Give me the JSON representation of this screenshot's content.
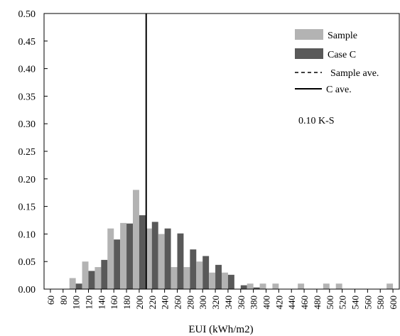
{
  "chart_data": {
    "type": "bar",
    "title": "",
    "xlabel": "EUI (kWh/m2)",
    "ylabel": "",
    "ylim": [
      0,
      0.5
    ],
    "yticks": [
      "0.00",
      "0.05",
      "0.10",
      "0.15",
      "0.20",
      "0.25",
      "0.30",
      "0.35",
      "0.40",
      "0.45",
      "0.50"
    ],
    "categories": [
      "60",
      "80",
      "100",
      "120",
      "140",
      "160",
      "180",
      "200",
      "220",
      "240",
      "260",
      "280",
      "300",
      "320",
      "340",
      "360",
      "380",
      "400",
      "420",
      "440",
      "460",
      "480",
      "500",
      "520",
      "540",
      "560",
      "580",
      "600"
    ],
    "series": [
      {
        "name": "Sample",
        "color": "#b3b3b3",
        "values": [
          0,
          0,
          0.02,
          0.05,
          0.04,
          0.11,
          0.12,
          0.18,
          0.11,
          0.1,
          0.04,
          0.04,
          0.05,
          0.03,
          0.03,
          0,
          0.01,
          0.01,
          0.01,
          0,
          0.01,
          0,
          0.01,
          0.01,
          0,
          0,
          0,
          0.01
        ]
      },
      {
        "name": "Case C",
        "color": "#595959",
        "values": [
          0,
          0,
          0.01,
          0.033,
          0.053,
          0.09,
          0.119,
          0.134,
          0.122,
          0.11,
          0.101,
          0.072,
          0.06,
          0.044,
          0.026,
          0.007,
          0.003,
          0,
          0,
          0,
          0,
          0,
          0,
          0,
          0,
          0,
          0,
          0
        ]
      }
    ],
    "reference_lines": [
      {
        "name": "Sample ave.",
        "style": "dashed",
        "x": 211
      },
      {
        "name": "C ave.",
        "style": "solid",
        "x": 211
      }
    ],
    "annotation": "0.10 K-S",
    "grid": false,
    "legend_position": "top-right"
  }
}
